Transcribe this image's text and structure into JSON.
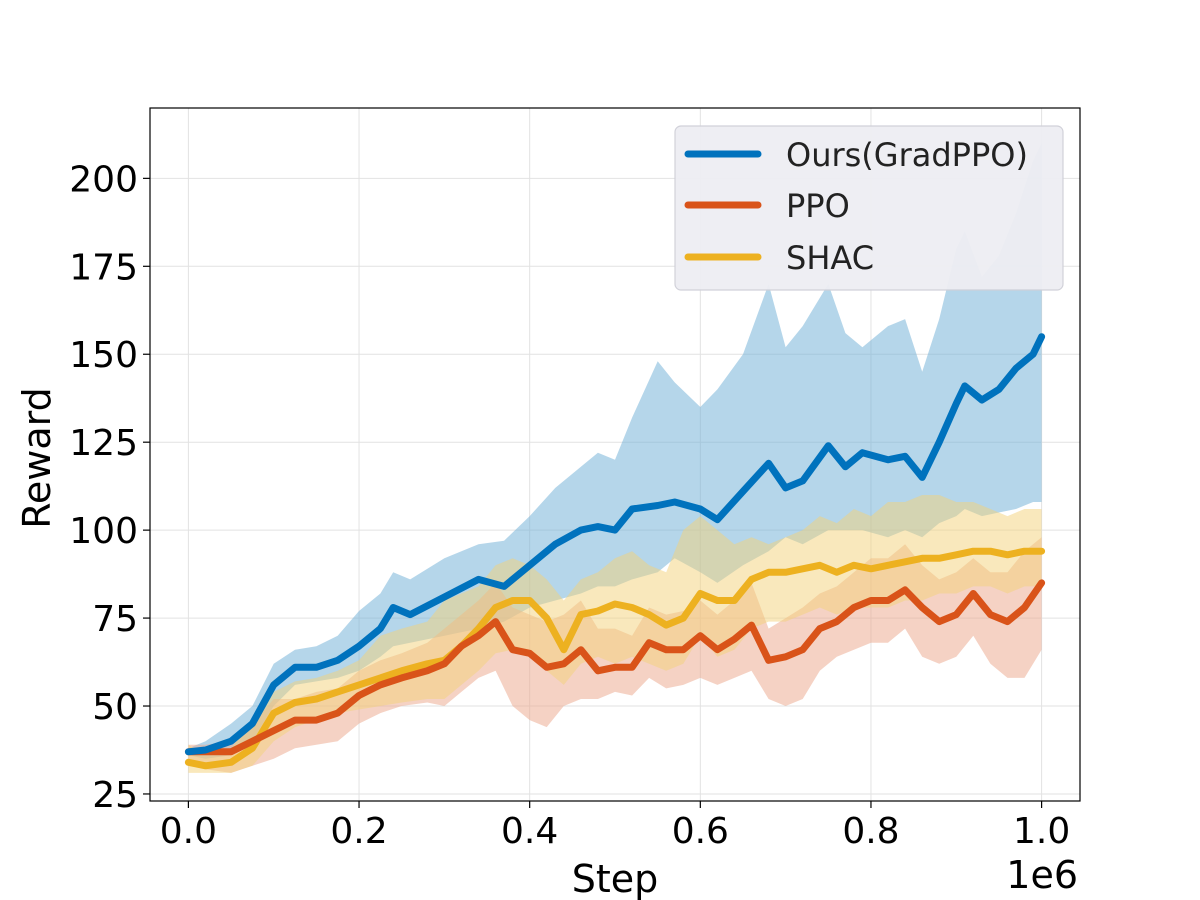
{
  "chart_data": {
    "type": "line",
    "title": "",
    "xlabel": "Step",
    "ylabel": "Reward",
    "x_offset_label": "1e6",
    "xlim": [
      -0.045,
      1.045
    ],
    "ylim": [
      23,
      220
    ],
    "x_ticks": [
      0.0,
      0.2,
      0.4,
      0.6,
      0.8,
      1.0
    ],
    "x_tick_labels": [
      "0.0",
      "0.2",
      "0.4",
      "0.6",
      "0.8",
      "1.0"
    ],
    "y_ticks": [
      25,
      50,
      75,
      100,
      125,
      150,
      175,
      200
    ],
    "y_tick_labels": [
      "25",
      "50",
      "75",
      "100",
      "125",
      "150",
      "175",
      "200"
    ],
    "grid": true,
    "legend_position": "top-right",
    "series": [
      {
        "name": "Ours(GradPPO)",
        "color": "#0072bd",
        "band_color": "#6baed6",
        "points": [
          [
            0.0,
            37,
            36,
            38
          ],
          [
            0.02,
            37.5,
            35,
            40
          ],
          [
            0.05,
            40,
            36,
            45
          ],
          [
            0.075,
            45,
            40,
            50
          ],
          [
            0.1,
            56,
            50,
            62
          ],
          [
            0.125,
            61,
            56,
            66
          ],
          [
            0.15,
            61,
            57,
            67
          ],
          [
            0.175,
            63,
            58,
            70
          ],
          [
            0.2,
            67,
            60,
            77
          ],
          [
            0.225,
            72,
            64,
            82
          ],
          [
            0.24,
            78,
            67,
            88
          ],
          [
            0.26,
            76,
            68,
            86
          ],
          [
            0.3,
            81,
            70,
            92
          ],
          [
            0.34,
            86,
            72,
            96
          ],
          [
            0.37,
            84,
            74,
            97
          ],
          [
            0.4,
            90,
            78,
            104
          ],
          [
            0.43,
            96,
            80,
            112
          ],
          [
            0.46,
            100,
            82,
            118
          ],
          [
            0.48,
            101,
            84,
            122
          ],
          [
            0.5,
            100,
            84,
            120
          ],
          [
            0.52,
            106,
            86,
            132
          ],
          [
            0.55,
            107,
            88,
            148
          ],
          [
            0.57,
            108,
            92,
            142
          ],
          [
            0.6,
            106,
            88,
            135
          ],
          [
            0.62,
            103,
            85,
            140
          ],
          [
            0.65,
            111,
            90,
            150
          ],
          [
            0.68,
            119,
            94,
            170
          ],
          [
            0.7,
            112,
            98,
            152
          ],
          [
            0.72,
            114,
            96,
            158
          ],
          [
            0.75,
            124,
            100,
            170
          ],
          [
            0.77,
            118,
            100,
            156
          ],
          [
            0.79,
            122,
            100,
            152
          ],
          [
            0.82,
            120,
            98,
            158
          ],
          [
            0.84,
            121,
            100,
            160
          ],
          [
            0.86,
            115,
            98,
            145
          ],
          [
            0.88,
            125,
            102,
            160
          ],
          [
            0.9,
            136,
            104,
            180
          ],
          [
            0.91,
            141,
            106,
            185
          ],
          [
            0.93,
            137,
            104,
            172
          ],
          [
            0.95,
            140,
            105,
            178
          ],
          [
            0.97,
            146,
            106,
            190
          ],
          [
            0.99,
            150,
            108,
            205
          ],
          [
            1.0,
            155,
            108,
            210
          ]
        ]
      },
      {
        "name": "PPO",
        "color": "#d95319",
        "band_color": "#eba68a",
        "points": [
          [
            0.0,
            37,
            34,
            39
          ],
          [
            0.02,
            37,
            32,
            39
          ],
          [
            0.05,
            37,
            31,
            40
          ],
          [
            0.075,
            40,
            33,
            45
          ],
          [
            0.1,
            43,
            35,
            52
          ],
          [
            0.125,
            46,
            38,
            52
          ],
          [
            0.15,
            46,
            39,
            54
          ],
          [
            0.175,
            48,
            40,
            55
          ],
          [
            0.2,
            53,
            45,
            60
          ],
          [
            0.225,
            56,
            48,
            63
          ],
          [
            0.25,
            58,
            50,
            65
          ],
          [
            0.28,
            60,
            51,
            68
          ],
          [
            0.3,
            62,
            50,
            72
          ],
          [
            0.32,
            67,
            54,
            76
          ],
          [
            0.34,
            70,
            58,
            80
          ],
          [
            0.36,
            74,
            60,
            85
          ],
          [
            0.38,
            66,
            50,
            78
          ],
          [
            0.4,
            65,
            46,
            76
          ],
          [
            0.42,
            61,
            44,
            74
          ],
          [
            0.44,
            62,
            50,
            76
          ],
          [
            0.46,
            66,
            52,
            80
          ],
          [
            0.48,
            60,
            52,
            72
          ],
          [
            0.5,
            61,
            54,
            72
          ],
          [
            0.52,
            61,
            53,
            70
          ],
          [
            0.54,
            68,
            58,
            78
          ],
          [
            0.56,
            66,
            55,
            76
          ],
          [
            0.58,
            66,
            56,
            77
          ],
          [
            0.6,
            70,
            58,
            80
          ],
          [
            0.62,
            66,
            56,
            76
          ],
          [
            0.64,
            69,
            58,
            80
          ],
          [
            0.66,
            73,
            60,
            85
          ],
          [
            0.68,
            63,
            52,
            72
          ],
          [
            0.7,
            64,
            50,
            75
          ],
          [
            0.72,
            66,
            52,
            78
          ],
          [
            0.74,
            72,
            60,
            82
          ],
          [
            0.76,
            74,
            64,
            84
          ],
          [
            0.78,
            78,
            66,
            88
          ],
          [
            0.8,
            80,
            68,
            92
          ],
          [
            0.82,
            80,
            68,
            92
          ],
          [
            0.84,
            83,
            72,
            96
          ],
          [
            0.86,
            78,
            64,
            90
          ],
          [
            0.88,
            74,
            62,
            86
          ],
          [
            0.9,
            76,
            64,
            88
          ],
          [
            0.92,
            82,
            70,
            92
          ],
          [
            0.94,
            76,
            62,
            88
          ],
          [
            0.96,
            74,
            58,
            88
          ],
          [
            0.98,
            78,
            58,
            94
          ],
          [
            1.0,
            85,
            66,
            98
          ]
        ]
      },
      {
        "name": "SHAC",
        "color": "#edb120",
        "band_color": "#f3d17a",
        "points": [
          [
            0.0,
            34,
            31,
            39
          ],
          [
            0.02,
            33,
            31,
            36
          ],
          [
            0.05,
            34,
            31,
            38
          ],
          [
            0.075,
            38,
            33,
            46
          ],
          [
            0.1,
            48,
            40,
            54
          ],
          [
            0.125,
            51,
            44,
            57
          ],
          [
            0.15,
            52,
            46,
            58
          ],
          [
            0.175,
            54,
            48,
            60
          ],
          [
            0.2,
            56,
            49,
            63
          ],
          [
            0.225,
            58,
            50,
            70
          ],
          [
            0.25,
            60,
            51,
            72
          ],
          [
            0.28,
            62,
            52,
            74
          ],
          [
            0.3,
            63,
            52,
            80
          ],
          [
            0.32,
            67,
            56,
            82
          ],
          [
            0.34,
            72,
            60,
            84
          ],
          [
            0.36,
            78,
            65,
            90
          ],
          [
            0.38,
            80,
            66,
            92
          ],
          [
            0.4,
            80,
            64,
            90
          ],
          [
            0.42,
            75,
            60,
            86
          ],
          [
            0.44,
            66,
            56,
            80
          ],
          [
            0.46,
            76,
            62,
            86
          ],
          [
            0.48,
            77,
            64,
            88
          ],
          [
            0.5,
            79,
            62,
            92
          ],
          [
            0.52,
            78,
            64,
            94
          ],
          [
            0.54,
            76,
            62,
            90
          ],
          [
            0.56,
            73,
            60,
            88
          ],
          [
            0.58,
            75,
            62,
            100
          ],
          [
            0.6,
            82,
            70,
            104
          ],
          [
            0.62,
            80,
            64,
            100
          ],
          [
            0.64,
            80,
            66,
            96
          ],
          [
            0.66,
            86,
            72,
            98
          ],
          [
            0.68,
            88,
            74,
            96
          ],
          [
            0.7,
            88,
            74,
            98
          ],
          [
            0.72,
            89,
            76,
            100
          ],
          [
            0.74,
            90,
            78,
            104
          ],
          [
            0.76,
            88,
            76,
            102
          ],
          [
            0.78,
            90,
            78,
            106
          ],
          [
            0.8,
            89,
            78,
            104
          ],
          [
            0.82,
            90,
            78,
            108
          ],
          [
            0.84,
            91,
            80,
            108
          ],
          [
            0.86,
            92,
            80,
            110
          ],
          [
            0.88,
            92,
            82,
            110
          ],
          [
            0.9,
            93,
            82,
            108
          ],
          [
            0.92,
            94,
            84,
            108
          ],
          [
            0.94,
            94,
            84,
            106
          ],
          [
            0.96,
            93,
            82,
            104
          ],
          [
            0.98,
            94,
            84,
            106
          ],
          [
            1.0,
            94,
            84,
            106
          ]
        ]
      }
    ]
  }
}
